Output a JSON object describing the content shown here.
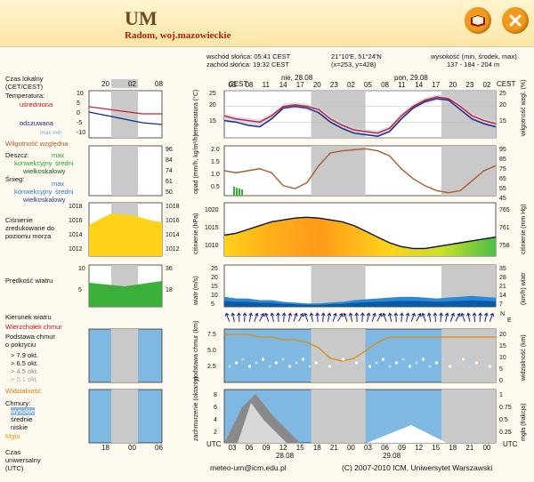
{
  "header": {
    "title": "UM",
    "subtitle": "Radom, woj.mazowieckie",
    "icons": [
      "book-icon",
      "close-icon"
    ]
  },
  "info": {
    "sunrise": "wschód słońca: 05:41 CEST",
    "sunset": "zachód słońca: 19:32 CEST",
    "coords": "21°10'E, 51°24'N",
    "grid": "(x=253, y=428)",
    "elev_label": "wysokość (min, środek, max)",
    "elev_values": "137 - 184 - 204 m"
  },
  "time_axis": {
    "local_label": "Czas lokalny (CET/CEST)",
    "cest": "CEST",
    "small_hours": [
      "20",
      "02",
      "08"
    ],
    "day1": "nie, 28.08",
    "day2": "pon, 29.08",
    "hours": [
      "05",
      "08",
      "11",
      "14",
      "17",
      "20",
      "23",
      "02",
      "05",
      "08",
      "11",
      "14",
      "17",
      "20",
      "23",
      "02"
    ],
    "utc_label": "UTC",
    "utc_hours": [
      "03",
      "06",
      "09",
      "12",
      "15",
      "18",
      "21",
      "00",
      "03",
      "06",
      "09",
      "12",
      "15",
      "18",
      "21",
      "00"
    ],
    "utc_day1": "28.08",
    "utc_day2": "29.08",
    "small_utc": [
      "18",
      "00",
      "06"
    ],
    "universal_label": "Czas uniwersalny (UTC)"
  },
  "panels": {
    "temperature": {
      "label": "Temperatura:",
      "mean": "uśredniona",
      "perceived": "odczuwana",
      "minmax": "max min",
      "humidity": "Wilgotność względna",
      "axis": [
        "10",
        "5",
        "0",
        "-5",
        "-10"
      ],
      "axis_right": [
        "96",
        "84",
        "74"
      ],
      "vlabel": "temperatura (°C)",
      "vlabel_right": "wilgotność wzgl. (%)",
      "temp_series": [
        17,
        16,
        15.5,
        15,
        17,
        20,
        20.5,
        20,
        19,
        16,
        14,
        12.5,
        12,
        11.5,
        13,
        17,
        20,
        22,
        23,
        22.5,
        20,
        17,
        15.5,
        14.5
      ],
      "perc_series": [
        15.5,
        15,
        14,
        13.5,
        16,
        19.5,
        20,
        19.5,
        18,
        15,
        13,
        11.5,
        11,
        10.5,
        12,
        16,
        19.5,
        21.5,
        22.5,
        22,
        19,
        16,
        14.5,
        13.5
      ],
      "right_ticks": [
        "(°C)"
      ]
    },
    "precip": {
      "rain": "Deszcz:",
      "rain_max": "max",
      "rain_conv": "konwekcyjny",
      "rain_mean": "średni",
      "rain_scale": "wielkoskalowy",
      "snow": "Śnieg:",
      "snow_max": "max",
      "snow_conv": "konwekcyjny",
      "snow_mean": "średni",
      "snow_scale": "wielkoskalowy",
      "axis": [
        "2.0",
        "1.5",
        "1.0",
        "0.5"
      ],
      "axis_right": [
        "95",
        "85",
        "75",
        "65",
        "55",
        "45"
      ],
      "small_axis_right": [
        "96",
        "84",
        "74",
        "61",
        "50"
      ],
      "vlabel": "opad (mm/h, kg/m²/h)",
      "humidity_series": [
        70,
        68,
        70,
        72,
        68,
        55,
        52,
        58,
        75,
        88,
        90,
        91,
        92,
        90,
        85,
        72,
        62,
        55,
        50,
        48,
        50,
        60,
        70,
        75
      ]
    },
    "pressure": {
      "label": "Ciśnienie zredukowane do poziomu morza",
      "axis": [
        "1020",
        "1015",
        "1010"
      ],
      "axis_right": [
        "765",
        "761",
        "758"
      ],
      "small_axis": [
        "1018",
        "1016",
        "1014",
        "1012"
      ],
      "vlabel": "ciśnienie (hPa)",
      "vlabel_right": "ciśnienie (mm Hg)",
      "series": [
        1013.5,
        1014,
        1015,
        1016,
        1017,
        1017.5,
        1018,
        1018.2,
        1018,
        1017.5,
        1017,
        1016,
        1014.5,
        1013,
        1011.5,
        1010.5,
        1010,
        1010,
        1010.5,
        1011,
        1011.5,
        1012,
        1012.5,
        1013
      ]
    },
    "wind": {
      "label": "Prędkość wiatru",
      "axis": [
        "25",
        "20",
        "15",
        "10",
        "5"
      ],
      "axis_right": [
        "35",
        "28",
        "21",
        "14",
        "7"
      ],
      "small_axis": [
        "10",
        "5"
      ],
      "small_axis_right": [
        "36",
        "18"
      ],
      "vlabel": "wiatr (m/s)",
      "vlabel_right": "(km/h) wiatr",
      "speed_series": [
        6,
        5,
        5,
        4,
        4,
        3,
        2.5,
        2,
        2,
        2.5,
        3,
        4,
        4.5,
        5,
        5.5,
        6,
        6,
        5.5,
        5,
        5.5,
        6,
        6.5,
        6,
        5.5
      ]
    },
    "direction": {
      "label": "Kierunek wiatru",
      "gust": "Wierzchołek chmur",
      "letters": [
        "N",
        "E"
      ]
    },
    "clouds": {
      "label": "Podstawa chmur o pokryciu",
      "okt": [
        "> 7.9 okt.",
        "> 6.5 okt.",
        "> 4.5 okt.",
        "> 0.1 okt."
      ],
      "visibility": "Widzialność",
      "axis": [
        "7.5",
        "5.0",
        "2.5"
      ],
      "axis_right": [
        "20",
        "15",
        "10",
        "5",
        "0"
      ],
      "vlabel": "podstawa chmur (km)",
      "vlabel_right": "widzialność (km)",
      "vis_series": [
        18,
        18,
        18,
        17,
        17,
        16,
        16,
        15,
        13,
        9,
        8,
        9,
        12,
        15,
        17,
        17,
        17,
        17,
        17,
        17,
        17,
        17,
        17,
        17
      ]
    },
    "cloudcover": {
      "label": "Chmury:",
      "high": "wysokie",
      "mid": "średnie",
      "low": "niskie",
      "fog": "Mgła",
      "axis": [
        "8",
        "6",
        "4",
        "2"
      ],
      "axis_right": [
        "1",
        "0.75",
        "0.5",
        "0.25"
      ],
      "vlabel": "zachmurzenie (oktanty)",
      "vlabel_right": "mgła (frakcja)"
    }
  },
  "footer": {
    "email": "meteo-um@icm.edu.pl",
    "copyright": "(C) 2007-2010 ICM, Uniwersytet Warszawski"
  },
  "colors": {
    "panel_bg": "#7fb8e0",
    "band": "#c9c9c9",
    "temp_red": "#d0202a",
    "temp_blue": "#1a2a8a",
    "humidity": "#b0582a",
    "accent": "#f39a1a"
  }
}
